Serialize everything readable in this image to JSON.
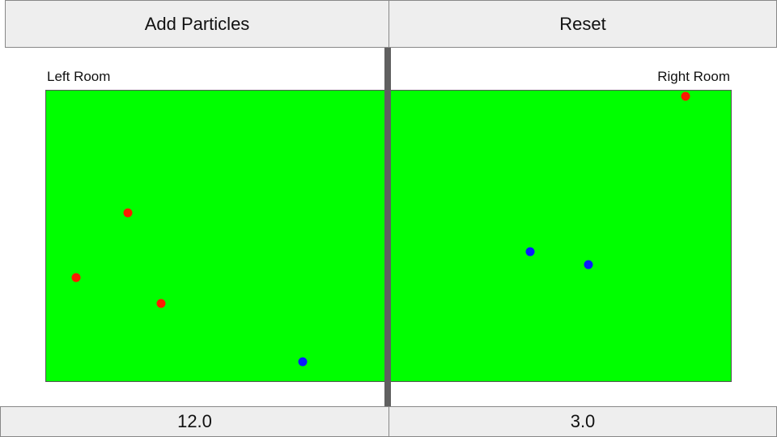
{
  "toolbar": {
    "add_particles_label": "Add Particles",
    "reset_label": "Reset"
  },
  "rooms": {
    "left": {
      "label": "Left Room",
      "value": "12.0"
    },
    "right": {
      "label": "Right Room",
      "value": "3.0"
    }
  },
  "colors": {
    "room_fill": "#00ff00",
    "divider": "#606060",
    "particle_red": "#ff1a00",
    "particle_blue": "#0a1aff",
    "button_bg": "#eeeeee"
  },
  "particles": {
    "left": {
      "red_count": 3,
      "blue_count": 1
    },
    "right": {
      "red_count": 1,
      "blue_count": 2
    }
  }
}
